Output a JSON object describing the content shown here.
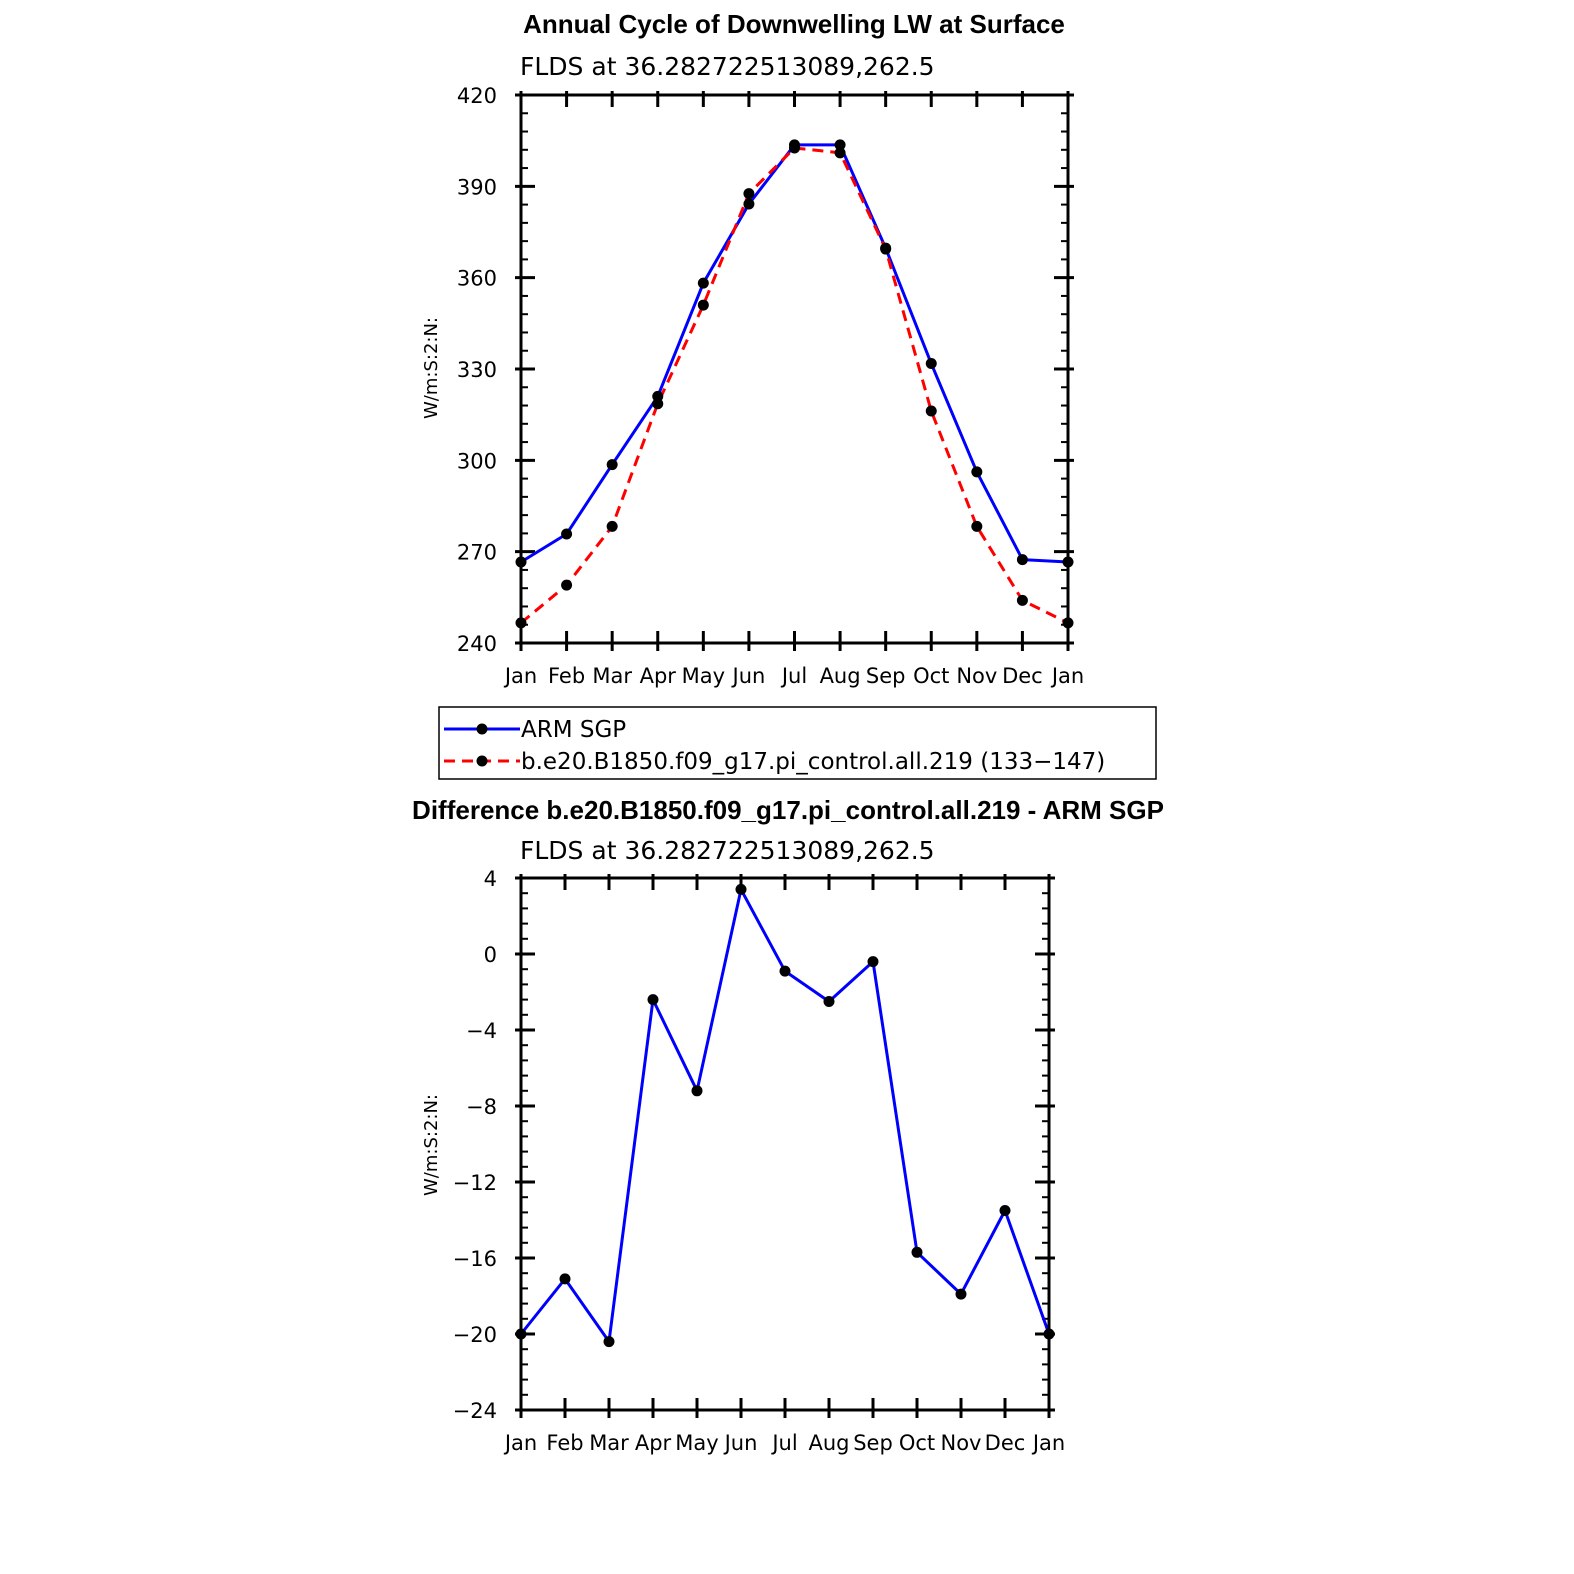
{
  "chart_data": [
    {
      "type": "line",
      "title": "Annual Cycle of Downwelling LW at Surface",
      "subtitle": "FLDS at 36.282722513089,262.5",
      "xlabel": "",
      "ylabel": "W/m:S:2:N:",
      "categories": [
        "Jan",
        "Feb",
        "Mar",
        "Apr",
        "May",
        "Jun",
        "Jul",
        "Aug",
        "Sep",
        "Oct",
        "Nov",
        "Dec",
        "Jan"
      ],
      "ylim": [
        240,
        420
      ],
      "yticks": [
        240,
        270,
        300,
        330,
        360,
        390,
        420
      ],
      "series": [
        {
          "name": "ARM SGP",
          "color": "#0000ff",
          "dash": "solid",
          "values": [
            266.6,
            275.8,
            298.6,
            321.0,
            358.2,
            384.2,
            403.6,
            403.6,
            369.7,
            331.8,
            296.2,
            267.4,
            266.6
          ]
        },
        {
          "name": "b.e20.B1850.f09_g17.pi_control.all.219 (133−147)",
          "color": "#ff0000",
          "dash": "dashed",
          "values": [
            246.6,
            259.0,
            278.3,
            318.6,
            351.0,
            387.6,
            402.6,
            401.0,
            369.4,
            316.2,
            278.3,
            254.0,
            246.6
          ]
        }
      ],
      "legend": "below"
    },
    {
      "type": "line",
      "title": "Difference b.e20.B1850.f09_g17.pi_control.all.219 - ARM SGP",
      "subtitle": "FLDS at 36.282722513089,262.5",
      "xlabel": "",
      "ylabel": "W/m:S:2:N:",
      "categories": [
        "Jan",
        "Feb",
        "Mar",
        "Apr",
        "May",
        "Jun",
        "Jul",
        "Aug",
        "Sep",
        "Oct",
        "Nov",
        "Dec",
        "Jan"
      ],
      "ylim": [
        -24,
        4
      ],
      "yticks": [
        -24,
        -20,
        -16,
        -12,
        -8,
        -4,
        0,
        4
      ],
      "ytick_labels": [
        "−24",
        "−20",
        "−16",
        "−12",
        "−8",
        "−4",
        "0",
        "4"
      ],
      "series": [
        {
          "color": "#0000ff",
          "dash": "solid",
          "values": [
            -20.0,
            -17.1,
            -20.4,
            -2.4,
            -7.2,
            3.4,
            -0.9,
            -2.5,
            -0.4,
            -15.7,
            -17.9,
            -13.5,
            -20.0
          ]
        }
      ]
    }
  ]
}
